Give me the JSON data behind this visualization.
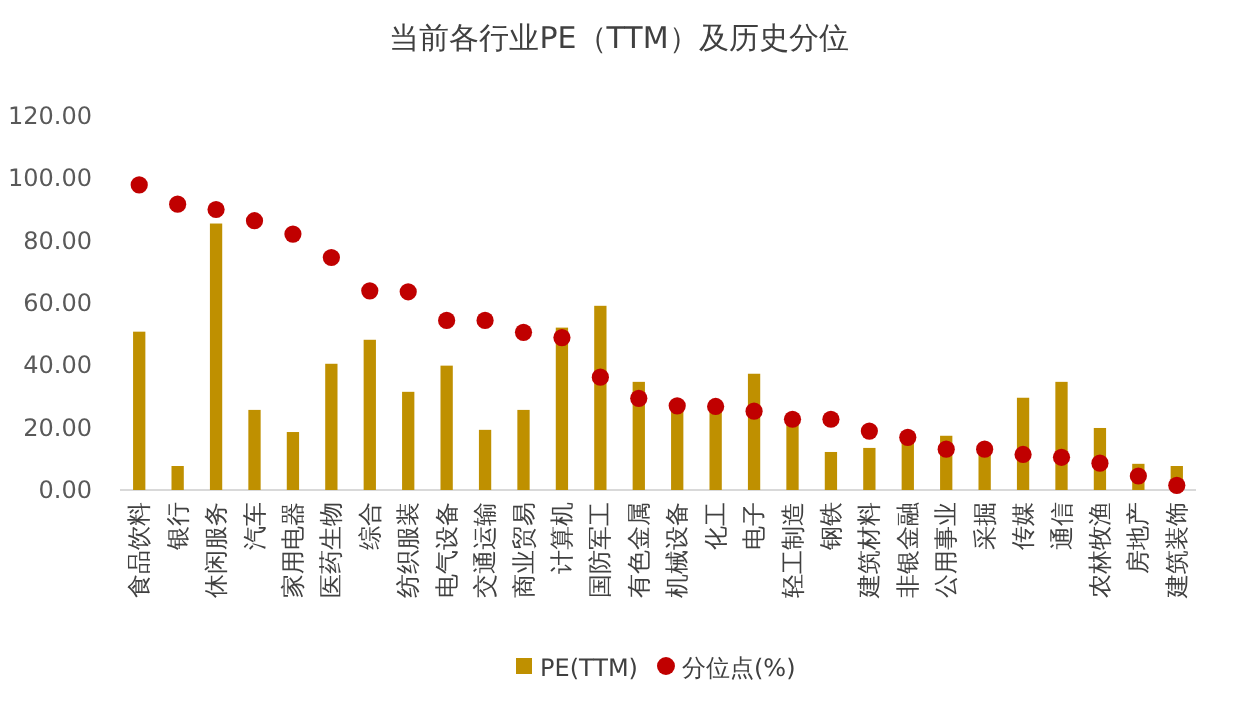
{
  "chart_data": {
    "type": "bar",
    "title": "当前各行业PE（TTM）及历史分位",
    "categories": [
      "食品饮料",
      "银行",
      "休闲服务",
      "汽车",
      "家用电器",
      "医药生物",
      "综合",
      "纺织服装",
      "电气设备",
      "交通运输",
      "商业贸易",
      "计算机",
      "国防军工",
      "有色金属",
      "机械设备",
      "化工",
      "电子",
      "轻工制造",
      "钢铁",
      "建筑材料",
      "非银金融",
      "公用事业",
      "采掘",
      "传媒",
      "通信",
      "农林牧渔",
      "房地产",
      "建筑装饰"
    ],
    "series": [
      {
        "name": "PE(TTM)",
        "color": "#bf9000",
        "values": [
          50.8,
          7.7,
          85.5,
          25.7,
          18.6,
          40.5,
          48.2,
          31.5,
          39.9,
          19.3,
          25.7,
          52.1,
          59.1,
          34.7,
          25.5,
          25.5,
          37.3,
          21.4,
          12.2,
          13.5,
          16.0,
          17.4,
          11.8,
          29.6,
          34.7,
          19.9,
          8.4,
          7.7
        ]
      },
      {
        "name": "分位点(%)",
        "type": "scatter",
        "marker": "circle",
        "color": "#c00000",
        "values": [
          97.9,
          91.7,
          90.0,
          86.4,
          82.1,
          74.6,
          63.9,
          63.6,
          54.4,
          54.4,
          50.6,
          48.9,
          36.2,
          29.4,
          27.0,
          26.8,
          25.3,
          22.7,
          22.7,
          18.9,
          16.9,
          13.1,
          13.1,
          11.4,
          10.5,
          8.6,
          4.5,
          1.5
        ]
      }
    ],
    "ylim": [
      0,
      120
    ],
    "yticks": [
      {
        "value": 0,
        "label": "0.00"
      },
      {
        "value": 20,
        "label": "20.00"
      },
      {
        "value": 40,
        "label": "40.00"
      },
      {
        "value": 60,
        "label": "60.00"
      },
      {
        "value": 80,
        "label": "80.00"
      },
      {
        "value": 100,
        "label": "100.00"
      },
      {
        "value": 120,
        "label": "120.00"
      }
    ],
    "legend": "bottom"
  }
}
